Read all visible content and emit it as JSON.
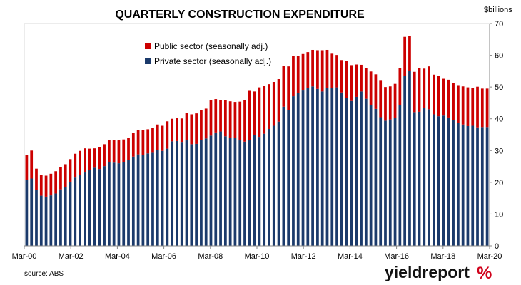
{
  "chart_data": {
    "type": "bar",
    "stacked": true,
    "title": "QUARTERLY CONSTRUCTION EXPENDITURE",
    "ylabel": "$billions",
    "ylim": [
      0,
      70
    ],
    "yticks": [
      0,
      10,
      20,
      30,
      40,
      50,
      60,
      70
    ],
    "grid": false,
    "legend_position": "top-left",
    "x_tick_labels": [
      "Mar-00",
      "Mar-02",
      "Mar-04",
      "Mar-06",
      "Mar-08",
      "Mar-10",
      "Mar-12",
      "Mar-14",
      "Mar-16",
      "Mar-18",
      "Mar-20"
    ],
    "x_start": "Mar-00",
    "x_end": "Mar-20",
    "series": [
      {
        "name": "Private sector (seasonally adj.)",
        "color": "#1b3a6b",
        "values": [
          20.8,
          21.2,
          17.5,
          15.8,
          15.5,
          15.9,
          16.5,
          17.8,
          18.6,
          20.2,
          21.5,
          22.3,
          23.1,
          24.0,
          24.6,
          24.2,
          25.1,
          26.3,
          26.2,
          26.0,
          26.4,
          27.0,
          28.1,
          28.8,
          28.7,
          29.1,
          29.3,
          30.2,
          29.9,
          30.6,
          32.9,
          33.0,
          32.5,
          33.2,
          32.0,
          32.1,
          33.3,
          33.8,
          34.7,
          35.7,
          36.0,
          34.5,
          34.0,
          33.9,
          33.2,
          32.8,
          33.4,
          35.0,
          34.3,
          35.3,
          36.8,
          37.8,
          39.1,
          43.8,
          42.7,
          47.1,
          48.2,
          48.9,
          49.6,
          50.2,
          49.4,
          48.6,
          49.7,
          49.8,
          49.9,
          48.3,
          46.6,
          45.6,
          46.9,
          48.6,
          46.3,
          44.4,
          43.1,
          40.5,
          39.4,
          39.8,
          40.2,
          44.2,
          53.6,
          55.1,
          42.1,
          42.2,
          43.3,
          43.0,
          41.4,
          40.8,
          41.0,
          40.4,
          39.7,
          38.6,
          38.2,
          37.7,
          37.8,
          37.3,
          37.4,
          37.4
        ]
      },
      {
        "name": "Public sector (seasonally adj.)",
        "color": "#cc0000",
        "values": [
          7.7,
          8.8,
          6.8,
          6.5,
          6.6,
          6.8,
          7.0,
          7.0,
          7.1,
          7.1,
          7.5,
          7.6,
          7.6,
          6.6,
          6.1,
          6.9,
          6.9,
          6.9,
          7.1,
          7.2,
          7.1,
          7.1,
          7.4,
          7.6,
          7.7,
          7.6,
          7.8,
          8.0,
          7.9,
          8.6,
          7.1,
          7.3,
          7.6,
          8.6,
          9.4,
          9.6,
          9.4,
          9.4,
          11.2,
          10.5,
          9.8,
          11.3,
          11.5,
          11.4,
          12.2,
          13.0,
          15.4,
          13.6,
          15.6,
          15.0,
          14.1,
          13.8,
          13.4,
          12.8,
          13.8,
          12.7,
          11.6,
          11.5,
          11.4,
          11.5,
          12.2,
          13.0,
          12.0,
          10.7,
          10.2,
          10.2,
          11.6,
          11.3,
          10.2,
          8.4,
          9.6,
          10.5,
          10.9,
          11.7,
          10.6,
          10.4,
          10.8,
          11.8,
          12.2,
          11.0,
          12.7,
          13.7,
          12.5,
          13.5,
          12.5,
          12.8,
          11.6,
          11.9,
          11.6,
          12.0,
          12.0,
          12.2,
          12.0,
          12.8,
          12.1,
          12.1
        ]
      }
    ]
  },
  "source_text": "source: ABS",
  "logo": {
    "main": "yieldreport",
    "mark": "%"
  }
}
